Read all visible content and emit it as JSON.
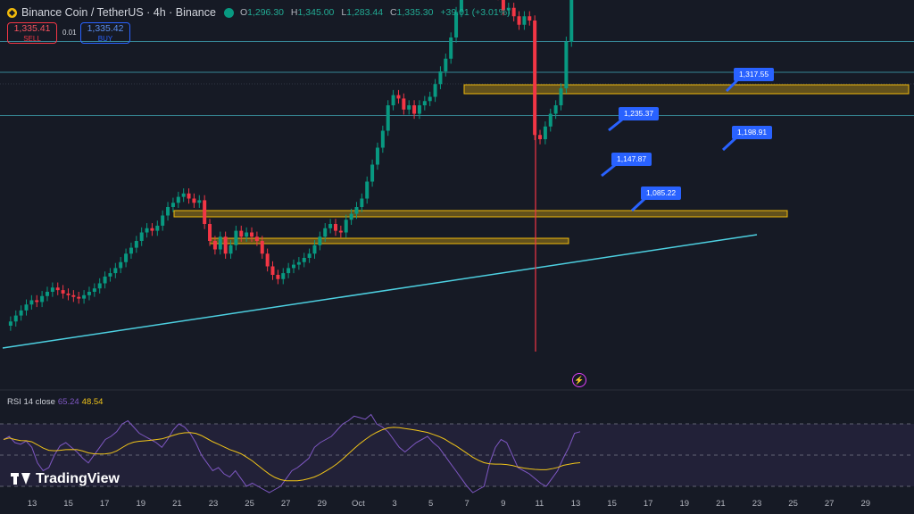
{
  "header": {
    "symbol_title": "Binance Coin / TetherUS · 4h · Binance",
    "ohlc": {
      "open_label": "O",
      "open": "1,296.30",
      "high_label": "H",
      "high": "1,345.00",
      "low_label": "L",
      "low": "1,283.44",
      "close_label": "C",
      "close": "1,335.30",
      "change": "+39.01 (+3.01%)"
    }
  },
  "trade": {
    "sell_price": "1,335.41",
    "sell_label": "SELL",
    "spread": "0.01",
    "buy_price": "1,335.42",
    "buy_label": "BUY"
  },
  "callouts": [
    "1,317.55",
    "1,235.37",
    "1,198.91",
    "1,147.87",
    "1,085.22"
  ],
  "rsi": {
    "label": "RSI 14 close",
    "value": "65.24",
    "ma": "48.54"
  },
  "x_axis": [
    "13",
    "15",
    "17",
    "19",
    "21",
    "23",
    "25",
    "27",
    "29",
    "Oct",
    "3",
    "5",
    "7",
    "9",
    "11",
    "13",
    "15",
    "17",
    "19",
    "21",
    "23",
    "25",
    "27",
    "29"
  ],
  "branding": {
    "name": "TradingView"
  },
  "colors": {
    "background": "#161a25",
    "up": "#089981",
    "down": "#f23645",
    "zone_fill": "#f0b90b",
    "line_cyan": "#4dd0e1",
    "callout": "#2962ff",
    "rsi_line": "#7e57c2",
    "rsi_ma": "#f0c419"
  },
  "chart_data": {
    "type": "candlestick",
    "y_range": [
      850,
      1400
    ],
    "price_series": [
      900,
      905,
      912,
      918,
      925,
      930,
      928,
      935,
      940,
      945,
      942,
      938,
      936,
      934,
      932,
      936,
      940,
      944,
      950,
      958,
      962,
      968,
      975,
      985,
      992,
      1000,
      1010,
      1015,
      1012,
      1018,
      1030,
      1040,
      1045,
      1052,
      1056,
      1050,
      1045,
      1048,
      1020,
      1000,
      990,
      1005,
      985,
      995,
      1012,
      1005,
      1010,
      1005,
      1000,
      985,
      970,
      960,
      955,
      962,
      968,
      972,
      975,
      980,
      985,
      995,
      1005,
      1015,
      1020,
      1012,
      1010,
      1025,
      1032,
      1040,
      1050,
      1070,
      1090,
      1110,
      1130,
      1160,
      1172,
      1168,
      1155,
      1160,
      1150,
      1160,
      1165,
      1170,
      1185,
      1200,
      1215,
      1240,
      1270,
      1300,
      1310,
      1300,
      1308,
      1310,
      1305,
      1295,
      1290,
      1272,
      1275,
      1265,
      1255,
      1265,
      1260,
      1125,
      1120,
      1135,
      1150,
      1160,
      1180,
      1235,
      1300,
      1308,
      1330
    ],
    "wick_low_extreme": 1000,
    "rsi_series": [
      60,
      62,
      58,
      57,
      59,
      55,
      45,
      40,
      42,
      50,
      56,
      58,
      55,
      52,
      48,
      45,
      50,
      55,
      60,
      62,
      65,
      70,
      72,
      68,
      64,
      62,
      60,
      58,
      55,
      60,
      66,
      70,
      68,
      64,
      58,
      50,
      45,
      40,
      42,
      38,
      36,
      40,
      35,
      30,
      32,
      30,
      28,
      26,
      28,
      30,
      35,
      40,
      42,
      45,
      48,
      55,
      58,
      60,
      62,
      66,
      70,
      72,
      75,
      74,
      73,
      76,
      70,
      68,
      65,
      60,
      55,
      52,
      55,
      58,
      60,
      62,
      58,
      55,
      50,
      45,
      40,
      35,
      30,
      26,
      28,
      30,
      45,
      55,
      60,
      58,
      50,
      42,
      40,
      38,
      35,
      32,
      30,
      35,
      40,
      48,
      55,
      64,
      65
    ]
  }
}
